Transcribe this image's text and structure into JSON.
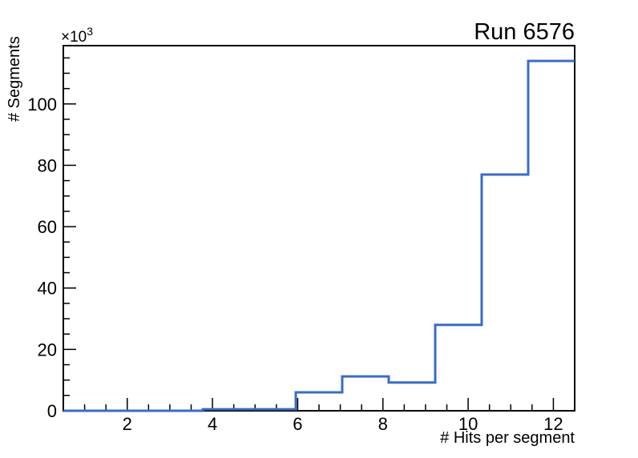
{
  "chart_data": {
    "type": "bar",
    "subtype": "root-step-histogram",
    "title": "Run 6576",
    "xlabel": "# Hits per segment",
    "ylabel": "# Segments",
    "y_axis_multiplier": {
      "base": "×10",
      "exponent": "3"
    },
    "xlim": [
      0.5,
      12.5
    ],
    "ylim": [
      0,
      119000
    ],
    "x_major_ticks": [
      2,
      4,
      6,
      8,
      10,
      12
    ],
    "x_major_tick_labels": [
      "2",
      "4",
      "6",
      "8",
      "10",
      "12"
    ],
    "x_minor_tick_step": 0.5,
    "y_major_ticks": [
      0,
      20000,
      40000,
      60000,
      80000,
      100000
    ],
    "y_major_tick_labels": [
      "0",
      "20",
      "40",
      "60",
      "80",
      "100"
    ],
    "y_minor_tick_step": 5000,
    "grid": false,
    "legend": false,
    "bins": {
      "edges": [
        0.5,
        1.591,
        2.682,
        3.773,
        4.864,
        5.955,
        7.045,
        8.136,
        9.227,
        10.318,
        11.409,
        12.5
      ],
      "counts": [
        0,
        0,
        0,
        500,
        500,
        6000,
        11200,
        9200,
        28000,
        77000,
        114000
      ]
    },
    "colors": {
      "line": "#3b6cc4",
      "frame": "#000000",
      "text": "#000000",
      "background": "#ffffff"
    }
  }
}
